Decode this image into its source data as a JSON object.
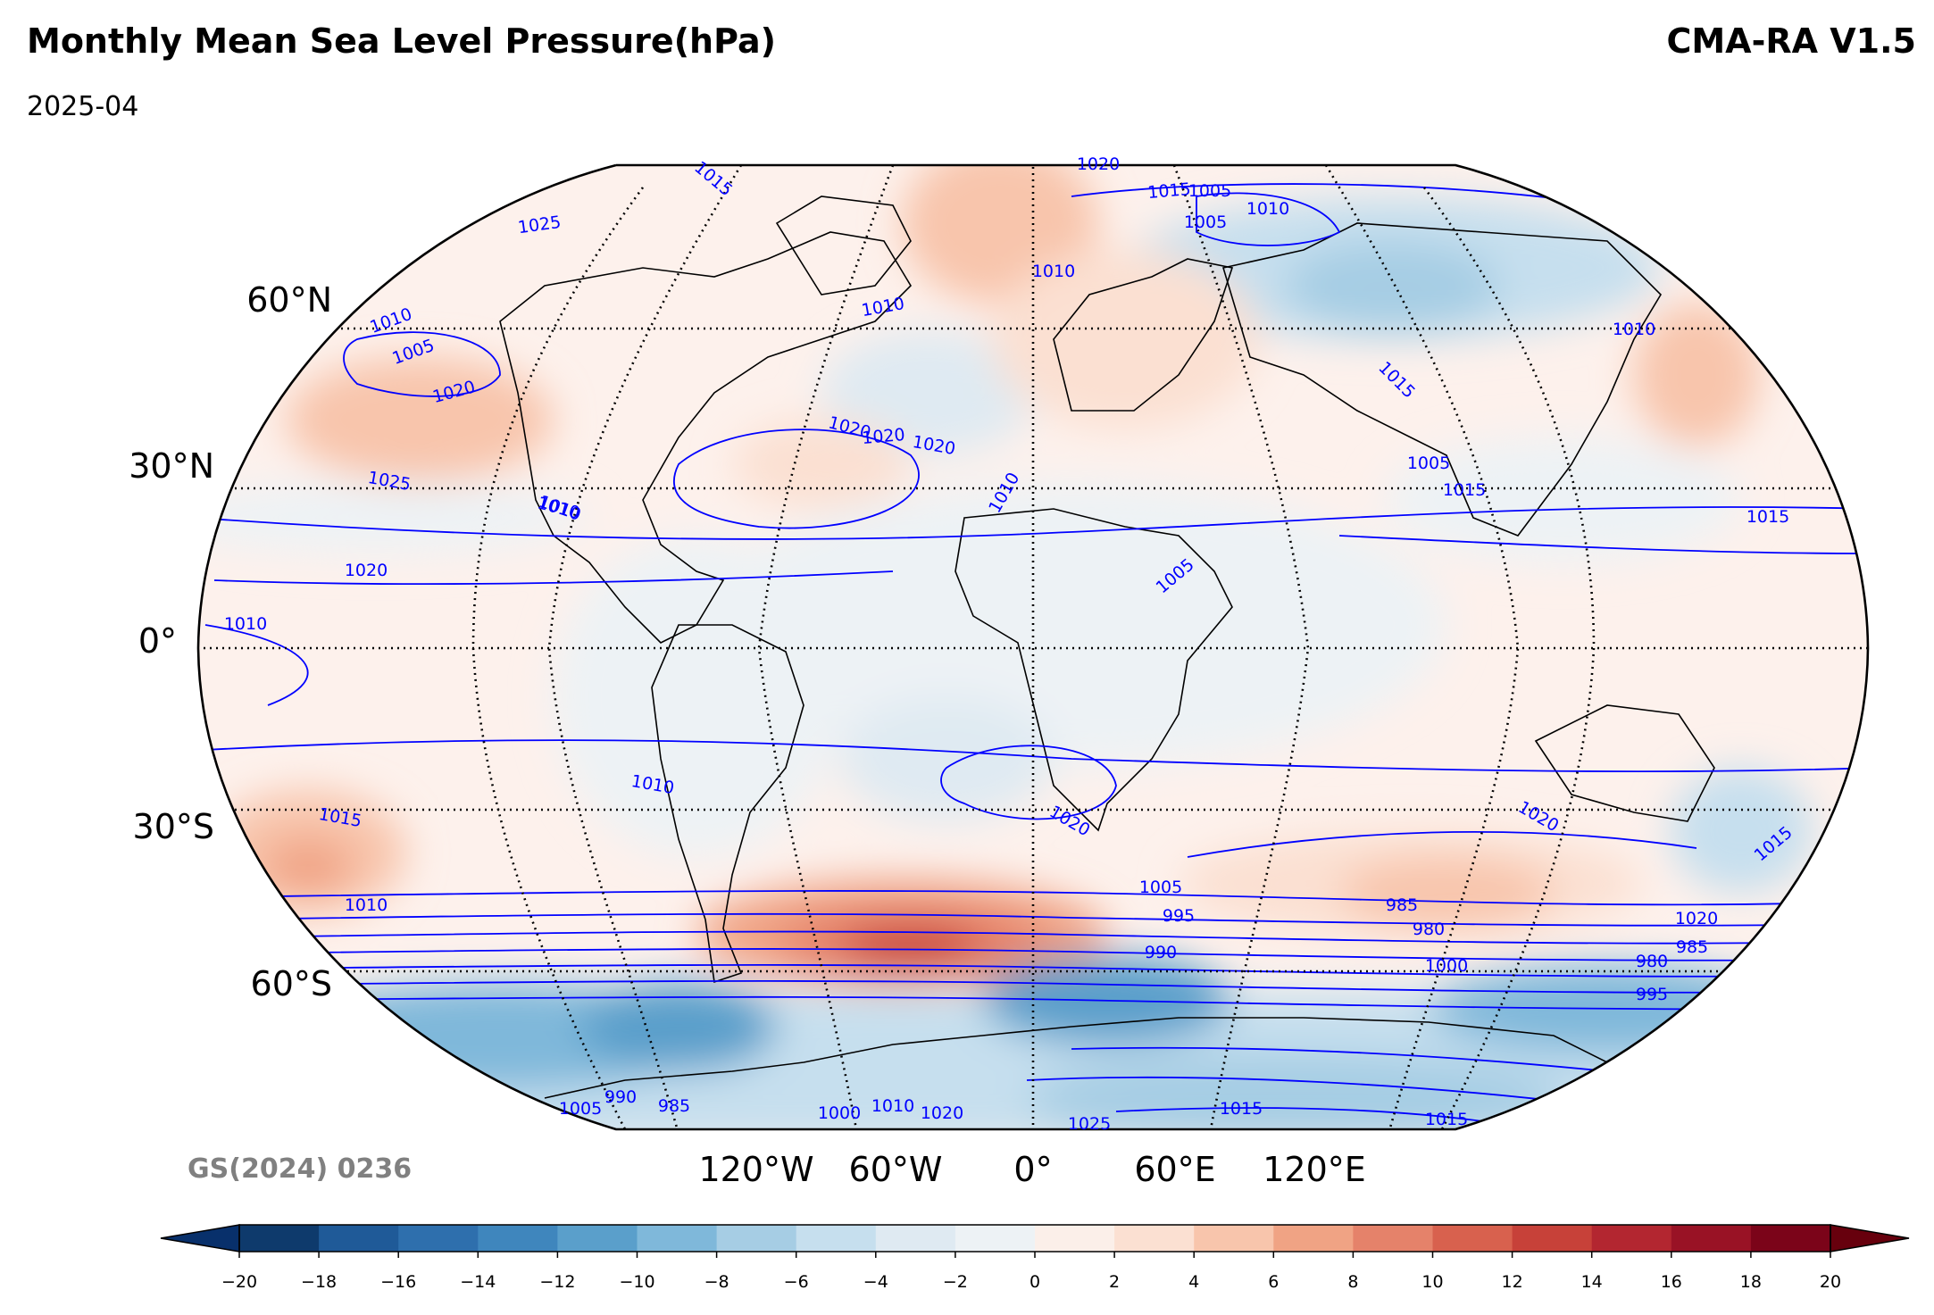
{
  "header": {
    "title": "Monthly Mean Sea Level Pressure(hPa)",
    "model": "CMA-RA V1.5",
    "date": "2025-04"
  },
  "footer": {
    "map_approval_code": "GS(2024) 0236"
  },
  "map": {
    "projection": "Robinson",
    "lat_labels": [
      "60°N",
      "30°N",
      "0°",
      "30°S",
      "60°S"
    ],
    "lon_labels": [
      "120°W",
      "60°W",
      "0°",
      "60°E",
      "120°E"
    ],
    "contour_line_color": "#0000ff",
    "contour_labels": [
      "1020",
      "1015",
      "1010",
      "1025",
      "1010",
      "1005",
      "1020",
      "1025",
      "1010",
      "1015",
      "1010",
      "1010",
      "1020",
      "1010",
      "1005",
      "1005",
      "1010",
      "1015",
      "1020",
      "1010",
      "1005",
      "1005",
      "1015",
      "1020",
      "1010",
      "1015",
      "1010",
      "1020",
      "1020",
      "1015",
      "1020",
      "1020",
      "1015",
      "1010",
      "1005",
      "995",
      "985",
      "980",
      "990",
      "1000",
      "980",
      "985",
      "995",
      "990",
      "985",
      "1005",
      "1000",
      "1010",
      "1020",
      "1025",
      "1015",
      "1015"
    ],
    "anomaly_field": {
      "variable": "sea level pressure anomaly",
      "units": "hPa",
      "positive_regions": [
        "North Atlantic / Greenland",
        "Europe",
        "North Pacific 30°N",
        "South Pacific 35°S",
        "South Atlantic 55°S",
        "South Indian Ocean 45°S",
        "Eastern Asia 55°N"
      ],
      "negative_regions": [
        "Southern Ocean 60–70°S",
        "Siberia / Northern Asia",
        "North Atlantic 50°N",
        "Western Australia coast"
      ]
    }
  },
  "colorbar": {
    "ticks": [
      "−20",
      "−18",
      "−16",
      "−14",
      "−12",
      "−10",
      "−8",
      "−6",
      "−4",
      "−2",
      "0",
      "2",
      "4",
      "6",
      "8",
      "10",
      "12",
      "14",
      "16",
      "18",
      "20"
    ],
    "colors": [
      "#0e3a6c",
      "#1f5a98",
      "#2e6fad",
      "#3f86bd",
      "#5a9fcb",
      "#7fb8da",
      "#a6cde4",
      "#c6dfee",
      "#dfeaf2",
      "#edf2f5",
      "#fbefe9",
      "#fbe0d2",
      "#f8c5ac",
      "#f0a384",
      "#e5826a",
      "#d8614e",
      "#c74139",
      "#b32630",
      "#991225",
      "#7b0419"
    ],
    "extend": "both"
  }
}
